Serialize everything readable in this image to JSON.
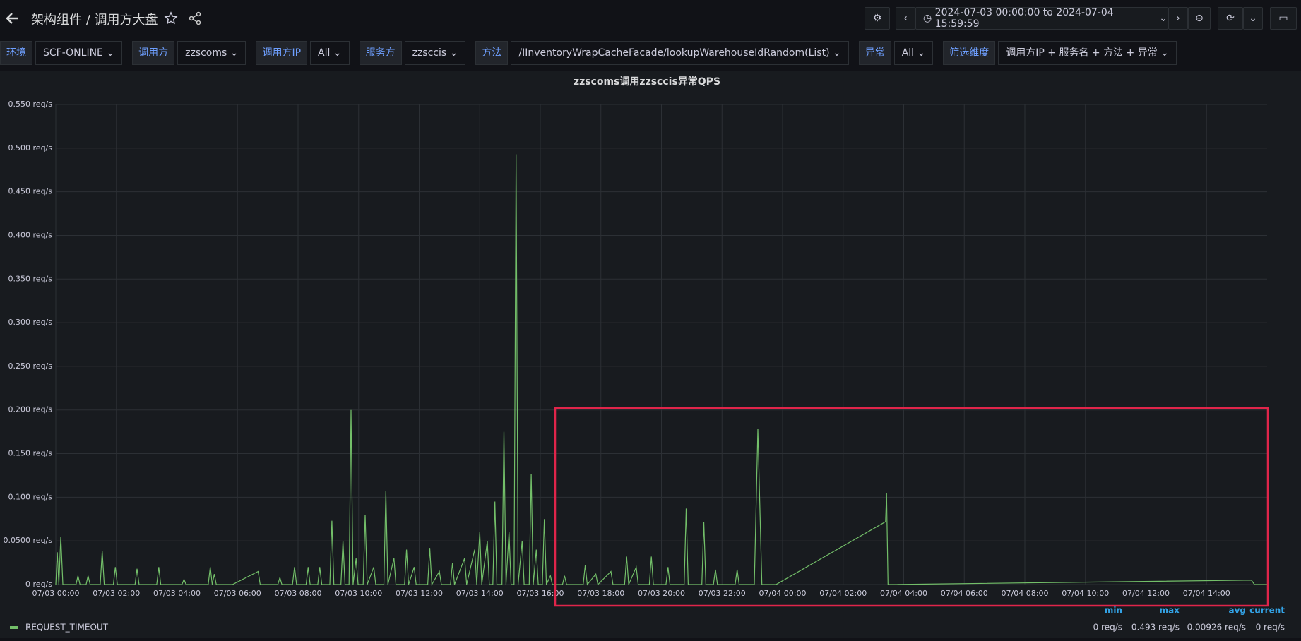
{
  "header": {
    "breadcrumb": "架构组件",
    "title": "调用方大盘",
    "time_range": "2024-07-03 00:00:00 to 2024-07-04 15:59:59"
  },
  "variables": [
    {
      "label": "环境",
      "value": "SCF-ONLINE"
    },
    {
      "label": "调用方",
      "value": "zzscoms"
    },
    {
      "label": "调用方IP",
      "value": "All"
    },
    {
      "label": "服务方",
      "value": "zzsccis"
    },
    {
      "label": "方法",
      "value": "/IInventoryWrapCacheFacade/lookupWarehouseIdRandom(List)"
    },
    {
      "label": "异常",
      "value": "All"
    },
    {
      "label": "筛选维度",
      "value": "调用方IP + 服务名 + 方法 + 异常"
    }
  ],
  "chart_data": {
    "type": "line",
    "title": "zzscoms调用zzsccis异常QPS",
    "grid": true,
    "xlim": [
      "07/03 00:00",
      "07/04 16:00"
    ],
    "xticks": [
      "07/03 00:00",
      "07/03 02:00",
      "07/03 04:00",
      "07/03 06:00",
      "07/03 08:00",
      "07/03 10:00",
      "07/03 12:00",
      "07/03 14:00",
      "07/03 16:00",
      "07/03 18:00",
      "07/03 20:00",
      "07/03 22:00",
      "07/04 00:00",
      "07/04 02:00",
      "07/04 04:00",
      "07/04 06:00",
      "07/04 08:00",
      "07/04 10:00",
      "07/04 12:00",
      "07/04 14:00"
    ],
    "ylim": [
      0,
      0.55
    ],
    "yticks": [
      {
        "value": 0,
        "label": "0 req/s"
      },
      {
        "value": 0.05,
        "label": "0.0500 req/s"
      },
      {
        "value": 0.1,
        "label": "0.100 req/s"
      },
      {
        "value": 0.15,
        "label": "0.150 req/s"
      },
      {
        "value": 0.2,
        "label": "0.200 req/s"
      },
      {
        "value": 0.25,
        "label": "0.250 req/s"
      },
      {
        "value": 0.3,
        "label": "0.300 req/s"
      },
      {
        "value": 0.35,
        "label": "0.350 req/s"
      },
      {
        "value": 0.4,
        "label": "0.400 req/s"
      },
      {
        "value": 0.45,
        "label": "0.450 req/s"
      },
      {
        "value": 0.5,
        "label": "0.500 req/s"
      },
      {
        "value": 0.55,
        "label": "0.550 req/s"
      }
    ],
    "x": [
      "07/03 00:00",
      "07/03 00:03",
      "07/03 00:06",
      "07/03 00:10",
      "07/03 00:14",
      "07/03 00:40",
      "07/03 00:44",
      "07/03 00:48",
      "07/03 01:00",
      "07/03 01:04",
      "07/03 01:08",
      "07/03 01:28",
      "07/03 01:32",
      "07/03 01:36",
      "07/03 01:54",
      "07/03 01:58",
      "07/03 02:02",
      "07/03 02:37",
      "07/03 02:41",
      "07/03 02:45",
      "07/03 03:20",
      "07/03 03:24",
      "07/03 03:28",
      "07/03 04:10",
      "07/03 04:14",
      "07/03 04:18",
      "07/03 05:02",
      "07/03 05:06",
      "07/03 05:10",
      "07/03 05:14",
      "07/03 05:18",
      "07/03 05:50",
      "07/03 06:41",
      "07/03 06:45",
      "07/03 07:20",
      "07/03 07:24",
      "07/03 07:28",
      "07/03 07:49",
      "07/03 07:53",
      "07/03 07:57",
      "07/03 08:16",
      "07/03 08:20",
      "07/03 08:24",
      "07/03 08:39",
      "07/03 08:43",
      "07/03 08:47",
      "07/03 09:03",
      "07/03 09:07",
      "07/03 09:11",
      "07/03 09:25",
      "07/03 09:29",
      "07/03 09:33",
      "07/03 09:41",
      "07/03 09:45",
      "07/03 09:49",
      "07/03 09:55",
      "07/03 09:59",
      "07/03 10:09",
      "07/03 10:13",
      "07/03 10:17",
      "07/03 10:30",
      "07/03 10:34",
      "07/03 10:50",
      "07/03 10:54",
      "07/03 10:58",
      "07/03 11:10",
      "07/03 11:14",
      "07/03 11:31",
      "07/03 11:35",
      "07/03 11:39",
      "07/03 11:50",
      "07/03 11:54",
      "07/03 12:17",
      "07/03 12:21",
      "07/03 12:25",
      "07/03 12:40",
      "07/03 12:44",
      "07/03 13:02",
      "07/03 13:06",
      "07/03 13:10",
      "07/03 13:30",
      "07/03 13:34",
      "07/03 13:50",
      "07/03 13:54",
      "07/03 14:00",
      "07/03 14:04",
      "07/03 14:15",
      "07/03 14:19",
      "07/03 14:26",
      "07/03 14:30",
      "07/03 14:34",
      "07/03 14:44",
      "07/03 14:48",
      "07/03 14:52",
      "07/03 14:58",
      "07/03 15:02",
      "07/03 15:08",
      "07/03 15:12",
      "07/03 15:16",
      "07/03 15:24",
      "07/03 15:28",
      "07/03 15:38",
      "07/03 15:42",
      "07/03 15:46",
      "07/03 15:52",
      "07/03 15:56",
      "07/03 16:04",
      "07/03 16:08",
      "07/03 16:12",
      "07/03 16:20",
      "07/03 16:24",
      "07/03 16:44",
      "07/03 16:48",
      "07/03 16:52",
      "07/03 17:25",
      "07/03 17:29",
      "07/03 17:33",
      "07/03 17:50",
      "07/03 17:54",
      "07/03 18:20",
      "07/03 18:24",
      "07/03 18:47",
      "07/03 18:51",
      "07/03 18:55",
      "07/03 19:10",
      "07/03 19:14",
      "07/03 19:36",
      "07/03 19:40",
      "07/03 19:44",
      "07/03 20:09",
      "07/03 20:13",
      "07/03 20:17",
      "07/03 20:45",
      "07/03 20:49",
      "07/03 20:53",
      "07/03 21:20",
      "07/03 21:24",
      "07/03 21:28",
      "07/03 21:43",
      "07/03 21:47",
      "07/03 21:51",
      "07/03 22:26",
      "07/03 22:30",
      "07/03 22:34",
      "07/03 23:04",
      "07/03 23:11",
      "07/03 23:19",
      "07/03 23:47",
      "07/04 03:24",
      "07/04 03:26",
      "07/04 03:29",
      "07/04 15:29",
      "07/04 15:35",
      "07/04 16:00"
    ],
    "series": [
      {
        "name": "REQUEST_TIMEOUT",
        "color": "#73bf69",
        "values": [
          0,
          0.037,
          0,
          0.055,
          0,
          0,
          0.01,
          0,
          0,
          0.01,
          0,
          0,
          0.038,
          0,
          0,
          0.02,
          0,
          0,
          0.018,
          0,
          0,
          0.02,
          0,
          0,
          0.006,
          0,
          0,
          0.02,
          0,
          0.012,
          0,
          0,
          0.015,
          0,
          0,
          0.008,
          0,
          0,
          0.02,
          0,
          0,
          0.02,
          0,
          0,
          0.02,
          0,
          0,
          0.073,
          0,
          0,
          0.05,
          0,
          0,
          0.2,
          0,
          0.03,
          0,
          0,
          0.08,
          0,
          0.02,
          0,
          0,
          0.107,
          0,
          0.03,
          0,
          0,
          0.04,
          0,
          0.02,
          0,
          0,
          0.042,
          0,
          0.015,
          0,
          0,
          0.025,
          0,
          0.03,
          0,
          0.04,
          0,
          0.06,
          0,
          0.05,
          0,
          0,
          0.095,
          0,
          0,
          0.175,
          0,
          0.06,
          0,
          0,
          0.493,
          0,
          0.05,
          0,
          0,
          0.127,
          0,
          0.04,
          0,
          0,
          0.075,
          0,
          0.01,
          0,
          0,
          0.01,
          0,
          0,
          0.022,
          0,
          0.012,
          0,
          0.015,
          0,
          0,
          0.032,
          0,
          0.02,
          0,
          0,
          0.032,
          0,
          0,
          0.02,
          0,
          0,
          0.087,
          0,
          0,
          0.072,
          0,
          0,
          0.017,
          0,
          0,
          0.017,
          0,
          0,
          0.178,
          0,
          0,
          0.072,
          0.105,
          0,
          0.005,
          0,
          0
        ]
      }
    ],
    "legend_stats": [
      {
        "name": "min",
        "value": 0,
        "label": "0 req/s"
      },
      {
        "name": "max",
        "value": 0.493,
        "label": "0.493 req/s"
      },
      {
        "name": "avg",
        "value": 0.00926,
        "label": "0.00926 req/s"
      },
      {
        "name": "current",
        "value": 0,
        "label": "0 req/s"
      }
    ]
  }
}
